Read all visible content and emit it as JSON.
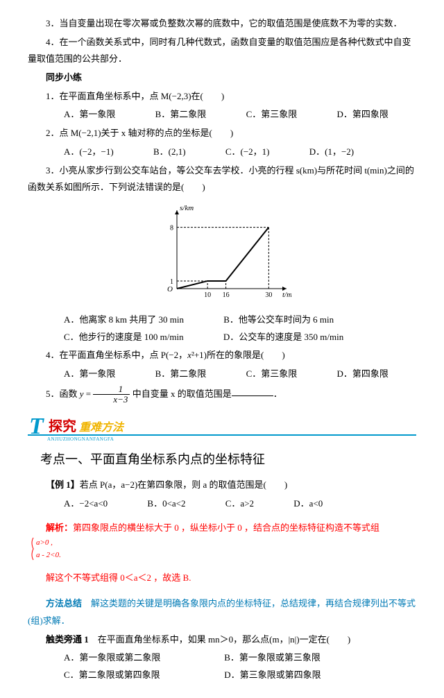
{
  "intro": {
    "p3": "3．当自变量出现在零次幂或负整数次幂的底数中，它的取值范围是使底数不为零的实数．",
    "p4": "4．在一个函数关系式中，同时有几种代数式，函数自变量的取值范围应是各种代数式中自变量取值范围的公共部分．"
  },
  "sync_title": "同步小练",
  "q1": {
    "stem": "1．在平面直角坐标系中，点 M(−2,3)在(　　)",
    "A": "A．第一象限",
    "B": "B．第二象限",
    "C": "C．第三象限",
    "D": "D．第四象限"
  },
  "q2": {
    "stem": "2．点 M(−2,1)关于 x 轴对称的点的坐标是(　　)",
    "A": "A．(−2，−1)",
    "B": "B．(2,1)",
    "C": "C．(−2，1)",
    "D": "D．(1，−2)"
  },
  "q3": {
    "stem": "3．小亮从家步行到公交车站台，等公交车去学校．小亮的行程 s(km)与所花时间 t(min)之间的函数关系如图所示．下列说法错误的是(　　)",
    "A": "A．他离家 8 km 共用了 30 min",
    "B": "B．他等公交车时间为 6 min",
    "C": "C．他步行的速度是 100 m/min",
    "D": "D．公交车的速度是 350 m/min"
  },
  "chart": {
    "x_ticks": [
      10,
      16,
      30
    ],
    "y_ticks": [
      1,
      8
    ],
    "x_label": "t/min",
    "y_label": "s/km",
    "origin": "O",
    "points": [
      [
        0,
        0
      ],
      [
        10,
        1
      ],
      [
        16,
        1
      ],
      [
        30,
        8
      ]
    ],
    "line_color": "#000000",
    "dash_color": "#000000",
    "axis_color": "#000000",
    "bg": "#ffffff",
    "line_width": 2,
    "xlim": [
      0,
      34
    ],
    "ylim": [
      0,
      9.5
    ]
  },
  "q4": {
    "stem_a": "4．在平面直角坐标系中，点 P(−2，",
    "stem_b": "x",
    "stem_c": "²+1)所在的象限是(　　)",
    "A": "A．第一象限",
    "B": "B．第二象限",
    "C": "C．第三象限",
    "D": "D．第四象限"
  },
  "q5": {
    "pre": "5．函数 ",
    "y_eq": "y",
    "eq_mid": " = ",
    "num": "1",
    "den": "x−3",
    "post": " 中自变量 x 的取值范围是",
    "end": "．"
  },
  "banner": {
    "big_T": "T",
    "title": "探究",
    "sub": "重难方法",
    "pinyin": "ANJIUZHONGNANFANGFA",
    "colors": {
      "blue": "#0099cc",
      "red": "#d40000",
      "yellow": "#f0b400",
      "line": "#0099cc"
    }
  },
  "kaodian": "考点一、平面直角坐标系内点的坐标特征",
  "ex1": {
    "stem_pre": "【例 1】",
    "stem": "若点 P(a，a−2)在第四象限，则 a 的取值范围是(　　)",
    "A": "A．−2<a<0",
    "B": "B．0<a<2",
    "C": "C．a>2",
    "D": "D．a<0"
  },
  "jiexi": {
    "label": "解析：",
    "text": "第四象限点的横坐标大于 0 ，纵坐标小于 0 ，结合点的坐标特征构造不等式组",
    "brace_top": "a>0 ,",
    "brace_bot": "a - 2<0."
  },
  "jiexi2": "解这个不等式组得 0＜a＜2 ，故选 B.",
  "fangfa": {
    "label": "方法总结",
    "text": "　解这类题的关键是明确各象限内点的坐标特征，总结规律，再结合规律列出不等式(组)求解．"
  },
  "cl1": {
    "label": "触类旁通 1",
    "stem": "　在平面直角坐标系中，如果 mn＞0，那么点(m，|n|)一定在(　　)",
    "A": "A．第一象限或第二象限",
    "B": "B．第一象限或第三象限",
    "C": "C．第二象限或第四象限",
    "D": "D．第三象限或第四象限"
  }
}
